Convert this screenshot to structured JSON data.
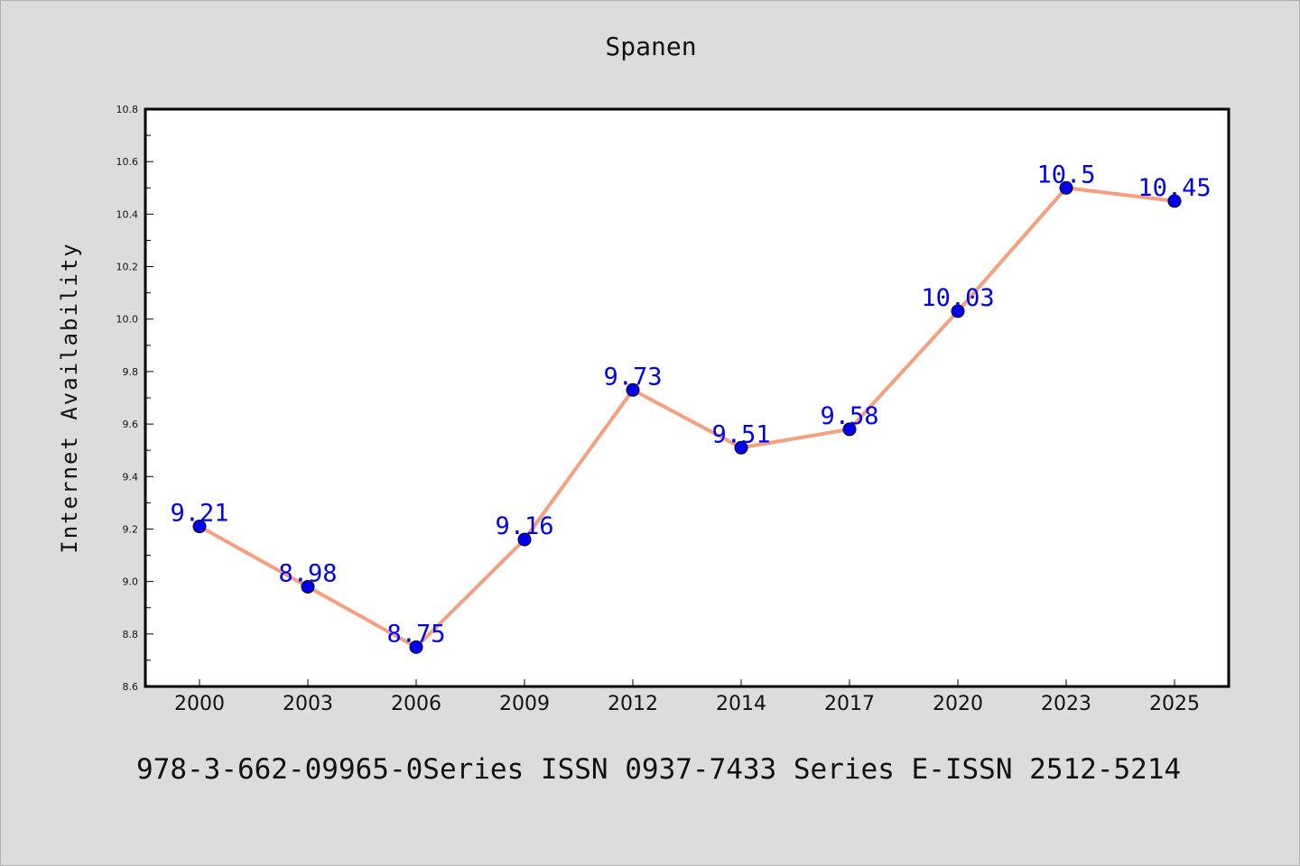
{
  "footer": {
    "text": "978-3-662-09965-0Series ISSN 0937-7433 Series E-ISSN 2512-5214"
  },
  "chart_data": {
    "type": "line",
    "title": "Spanen",
    "xlabel": "",
    "ylabel": "Internet Availability",
    "categories": [
      "2000",
      "2003",
      "2006",
      "2009",
      "2012",
      "2014",
      "2017",
      "2020",
      "2023",
      "2025"
    ],
    "values": [
      9.21,
      8.98,
      8.75,
      9.16,
      9.73,
      9.51,
      9.58,
      10.03,
      10.5,
      10.45
    ],
    "data_labels": [
      "9.21",
      "8.98",
      "8.75",
      "9.16",
      "9.73",
      "9.51",
      "9.58",
      "10.03",
      "10.5",
      "10.45"
    ],
    "ylim": [
      8.6,
      10.8
    ],
    "y_ticks": [
      "8.6",
      "8.8",
      "9.0",
      "9.2",
      "9.4",
      "9.6",
      "9.8",
      "10.0",
      "10.2",
      "10.4",
      "10.6",
      "10.8"
    ],
    "grid": false,
    "colors": {
      "line": "#f4a07f",
      "marker": "#0000ee",
      "label": "#0000ee",
      "frame": "#000000"
    }
  }
}
